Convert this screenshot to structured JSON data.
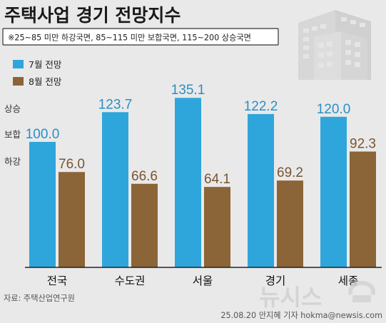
{
  "chart_data": {
    "type": "bar",
    "title": "주택사업 경기 전망지수",
    "subtitle": "※25~85 미만 하강국면, 85~115 미만 보합국면, 115~200 상승국면",
    "categories": [
      "전국",
      "수도권",
      "서울",
      "경기",
      "세종"
    ],
    "series": [
      {
        "name": "7월 전망",
        "values": [
          100.0,
          123.7,
          135.1,
          122.2,
          120.0
        ],
        "color": "#2ea6dc"
      },
      {
        "name": "8월 전망",
        "values": [
          76.0,
          66.6,
          64.1,
          69.2,
          92.3
        ],
        "color": "#8b6438"
      }
    ],
    "value_labels": [
      [
        "100.0",
        "123.7",
        "135.1",
        "122.2",
        "120.0"
      ],
      [
        "76.0",
        "66.6",
        "64.1",
        "69.2",
        "92.3"
      ]
    ],
    "level_labels": [
      "상승",
      "보합",
      "하강"
    ],
    "ylim": [
      0,
      150
    ],
    "grid": false,
    "legend_position": "top-left"
  },
  "footer": {
    "source": "자료: 주택산업연구원",
    "credit": "25.08.20 안지혜 기자 hokma@newsis.com",
    "watermark": "뉴시스"
  },
  "colors": {
    "background": "#e9e9e9",
    "seven_month": "#2ea6dc",
    "eight_month": "#8b6438",
    "seven_label": "#2a8fc4",
    "eight_label": "#7a5530"
  },
  "icons": {
    "building": "building-icon"
  }
}
